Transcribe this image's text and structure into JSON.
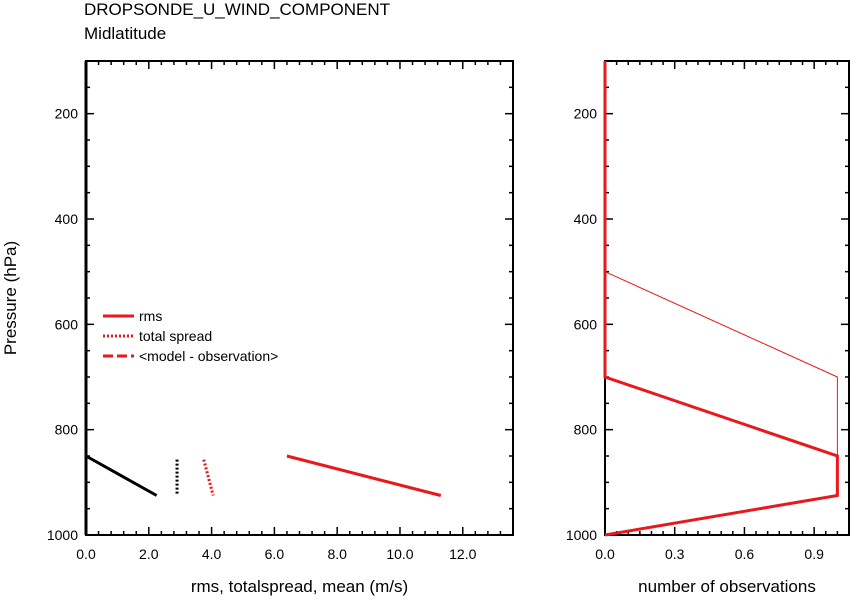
{
  "chart_data": [
    {
      "type": "line",
      "title": "DROPSONDE_U_WIND_COMPONENT",
      "subtitle": "Midlatitude",
      "xlabel": "rms, totalspread, mean (m/s)",
      "ylabel": "Pressure (hPa)",
      "xlim": [
        0,
        13.6
      ],
      "ylim": [
        1000,
        100
      ],
      "xticks": [
        "0.0",
        "2.0",
        "4.0",
        "6.0",
        "8.0",
        "10.0",
        "12.0"
      ],
      "yticks": [
        "200",
        "400",
        "600",
        "800",
        "1000"
      ],
      "legend": {
        "placement": "left-middle",
        "entries": [
          {
            "name": "rms",
            "style": "solid"
          },
          {
            "name": "total spread",
            "style": "dotted"
          },
          {
            "name": "<model - observation>",
            "style": "dashed"
          }
        ]
      },
      "series": [
        {
          "name": "rms",
          "color": "#e8191c",
          "style": "solid",
          "width": 3,
          "points": [
            {
              "x": 6.4,
              "y": 850
            },
            {
              "x": 11.3,
              "y": 925
            }
          ]
        },
        {
          "name": "total spread",
          "color": "#e8191c",
          "style": "dotted",
          "width": 3,
          "points": [
            {
              "x": 3.75,
              "y": 857
            },
            {
              "x": 4.05,
              "y": 925
            }
          ]
        },
        {
          "name": "black solid",
          "color": "#000000",
          "style": "solid",
          "width": 3,
          "points": [
            {
              "x": 0.0,
              "y": 850
            },
            {
              "x": 2.25,
              "y": 925
            }
          ]
        },
        {
          "name": "black dotted",
          "color": "#000000",
          "style": "dotted",
          "width": 3,
          "points": [
            {
              "x": 2.9,
              "y": 857
            },
            {
              "x": 2.9,
              "y": 925
            }
          ]
        },
        {
          "name": "black zero",
          "color": "#000000",
          "style": "solid",
          "width": 3,
          "points": [
            {
              "x": 0.0,
              "y": 100
            },
            {
              "x": 0.0,
              "y": 1000
            }
          ]
        }
      ]
    },
    {
      "type": "line",
      "xlabel": "number of observations",
      "xlim": [
        0,
        1.05
      ],
      "ylim": [
        1000,
        100
      ],
      "xticks": [
        "0.0",
        "0.3",
        "0.6",
        "0.9"
      ],
      "yticks": [
        "200",
        "400",
        "600",
        "800",
        "1000"
      ],
      "series": [
        {
          "name": "thick",
          "color": "#e8191c",
          "width": 3,
          "points": [
            {
              "x": 0,
              "y": 100
            },
            {
              "x": 0,
              "y": 700
            },
            {
              "x": 1,
              "y": 850
            },
            {
              "x": 1,
              "y": 925
            },
            {
              "x": 0,
              "y": 1000
            }
          ]
        },
        {
          "name": "thin",
          "color": "#e8191c",
          "width": 1,
          "points": [
            {
              "x": 0,
              "y": 500
            },
            {
              "x": 1,
              "y": 700
            },
            {
              "x": 1,
              "y": 850
            }
          ]
        }
      ]
    }
  ]
}
